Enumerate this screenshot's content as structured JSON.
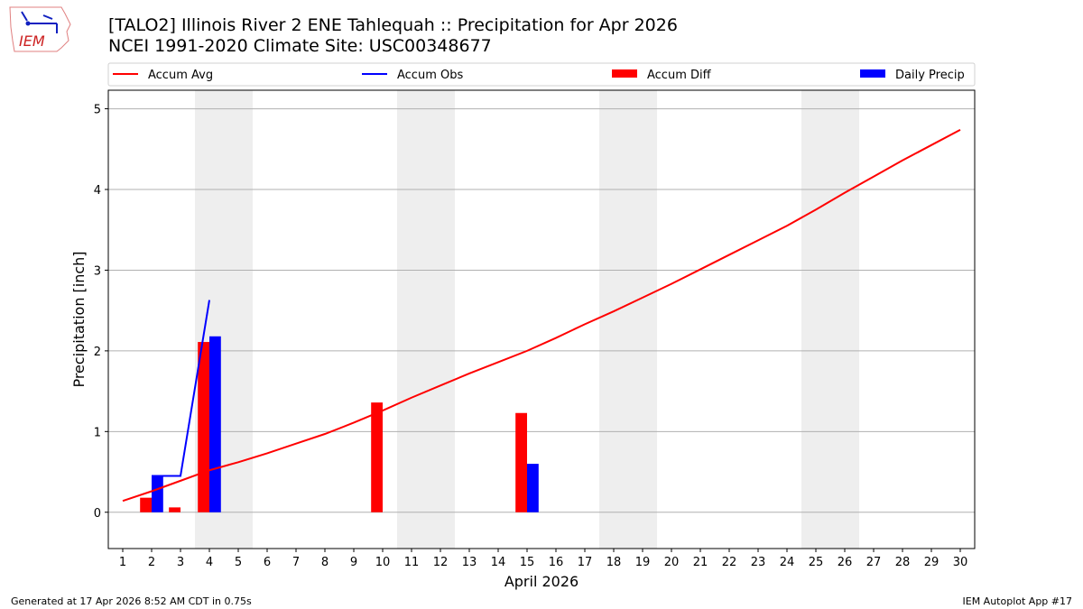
{
  "logo": {
    "text": "IEM"
  },
  "footer": {
    "left": "Generated at 17 Apr 2026 8:52 AM CDT in 0.75s",
    "right": "IEM Autoplot App #17"
  },
  "chart_data": {
    "type": "bar",
    "title": "[TALO2] Illinois River 2 ENE Tahlequah :: Precipitation for Apr 2026",
    "subtitle": "NCEI 1991-2020 Climate Site: USC00348677",
    "xlabel": "April 2026",
    "ylabel": "Precipitation [inch]",
    "xlim": [
      0.5,
      30.5
    ],
    "ylim": [
      -0.45,
      5.23
    ],
    "yticks": [
      0,
      1,
      2,
      3,
      4,
      5
    ],
    "xticks": [
      1,
      2,
      3,
      4,
      5,
      6,
      7,
      8,
      9,
      10,
      11,
      12,
      13,
      14,
      15,
      16,
      17,
      18,
      19,
      20,
      21,
      22,
      23,
      24,
      25,
      26,
      27,
      28,
      29,
      30
    ],
    "grid": "horizontal",
    "legend_placement": "top",
    "weekend_shading": [
      [
        3.5,
        5.5
      ],
      [
        10.5,
        12.5
      ],
      [
        17.5,
        19.5
      ],
      [
        24.5,
        26.5
      ]
    ],
    "colors": {
      "accum_avg": "#ff0000",
      "accum_obs": "#0000ff",
      "accum_diff": "#ff0000",
      "daily_precip": "#0000ff",
      "weekend": "#eeeeee"
    },
    "series": [
      {
        "name": "Accum Avg",
        "kind": "line",
        "x": [
          1,
          2,
          3,
          4,
          5,
          6,
          7,
          8,
          9,
          10,
          11,
          12,
          13,
          14,
          15,
          16,
          17,
          18,
          19,
          20,
          21,
          22,
          23,
          24,
          25,
          26,
          27,
          28,
          29,
          30
        ],
        "values": [
          0.14,
          0.26,
          0.39,
          0.52,
          0.62,
          0.73,
          0.85,
          0.97,
          1.11,
          1.26,
          1.42,
          1.57,
          1.72,
          1.86,
          2.0,
          2.16,
          2.33,
          2.49,
          2.66,
          2.83,
          3.01,
          3.19,
          3.37,
          3.55,
          3.75,
          3.96,
          4.16,
          4.36,
          4.55,
          4.74
        ]
      },
      {
        "name": "Accum Obs",
        "kind": "line",
        "x": [
          2,
          3,
          4
        ],
        "values": [
          0.45,
          0.45,
          2.63
        ]
      },
      {
        "name": "Accum Diff",
        "kind": "bar",
        "x": [
          2,
          3,
          4,
          10,
          15
        ],
        "values": [
          0.18,
          0.06,
          2.11,
          1.36,
          1.23
        ]
      },
      {
        "name": "Daily Precip",
        "kind": "bar",
        "x": [
          2,
          4,
          15
        ],
        "values": [
          0.45,
          2.18,
          0.6
        ]
      }
    ]
  }
}
